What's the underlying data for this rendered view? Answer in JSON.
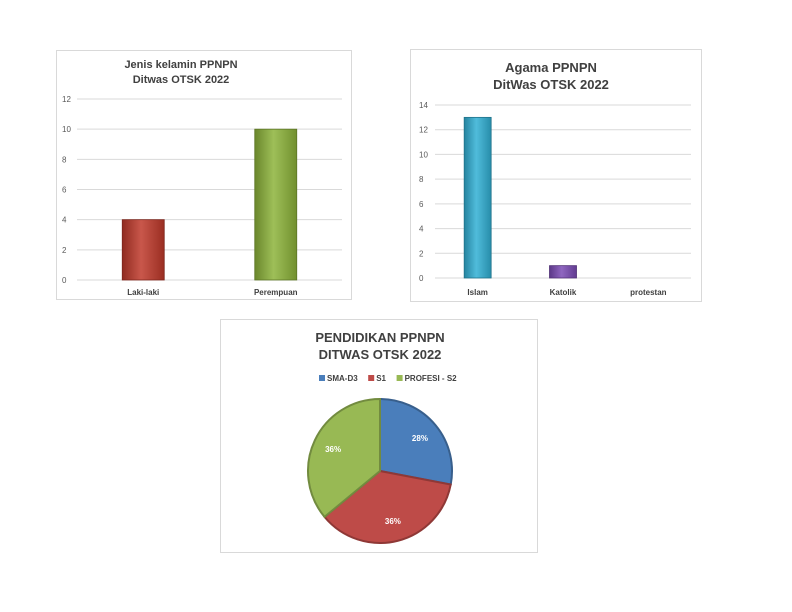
{
  "chart_data": [
    {
      "type": "bar",
      "title_lines": [
        "Jenis kelamin PPNPN",
        "Ditwas OTSK 2022"
      ],
      "categories": [
        "Laki-laki",
        "Perempuan"
      ],
      "values": [
        4,
        10
      ],
      "colors": [
        "#c0392b",
        "#8db43a"
      ],
      "ylim": [
        0,
        12
      ],
      "yticks": [
        "0",
        "2",
        "4",
        "6",
        "8",
        "10",
        "12"
      ],
      "grid": true
    },
    {
      "type": "bar",
      "title_lines": [
        "Agama PPNPN",
        "DitWas OTSK 2022"
      ],
      "categories": [
        "Islam",
        "Katolik",
        "protestan"
      ],
      "values": [
        13,
        1,
        0
      ],
      "colors": [
        "#31b0d5",
        "#7b4bb5",
        "#999999"
      ],
      "ylim": [
        0,
        14
      ],
      "yticks": [
        "0",
        "2",
        "4",
        "6",
        "8",
        "10",
        "12",
        "14"
      ],
      "grid": true
    },
    {
      "type": "pie",
      "title_lines": [
        "PENDIDIKAN PPNPN",
        "DITWAS OTSK 2022"
      ],
      "categories": [
        "SMA-D3",
        "S1",
        "PROFESI - S2"
      ],
      "values": [
        28,
        36,
        36
      ],
      "labels": [
        "28%",
        "36%",
        "36%"
      ],
      "colors": [
        "#4a7ebb",
        "#be4b48",
        "#98b954"
      ],
      "legend": "top"
    }
  ]
}
